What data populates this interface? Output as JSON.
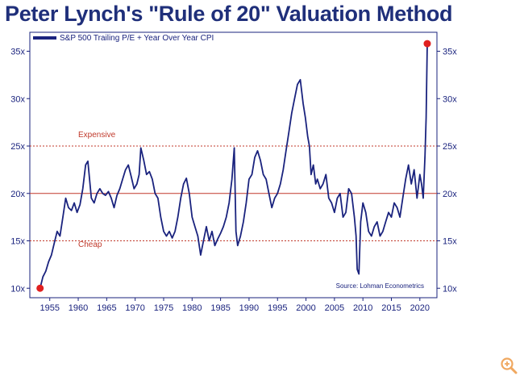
{
  "title": "Peter Lynch's \"Rule of 20\" Valuation Method",
  "icons": {
    "zoom": "zoom-in-icon"
  },
  "colors": {
    "title": "#1f2f7a",
    "series": "#1a237e",
    "reference": "#c0392b",
    "marker": "#e02020"
  },
  "chart_data": {
    "type": "line",
    "title": "Peter Lynch's \"Rule of 20\" Valuation Method",
    "xlabel": "",
    "ylabel": "",
    "xlim": [
      1951.5,
      2023
    ],
    "ylim": [
      9,
      37
    ],
    "x_ticks": [
      1955,
      1960,
      1965,
      1970,
      1975,
      1980,
      1985,
      1990,
      1995,
      2000,
      2005,
      2010,
      2015,
      2020
    ],
    "y_ticks": [
      {
        "value": 10,
        "label": "10x"
      },
      {
        "value": 15,
        "label": "15x"
      },
      {
        "value": 20,
        "label": "20x"
      },
      {
        "value": 25,
        "label": "25x"
      },
      {
        "value": 30,
        "label": "30x"
      },
      {
        "value": 35,
        "label": "35x"
      }
    ],
    "legend": {
      "position": "top-left",
      "entries": [
        "S&P 500 Trailing P/E + Year Over Year CPI"
      ]
    },
    "source": "Source: Lohman Econometrics",
    "reference_lines": [
      {
        "value": 25,
        "style": "dotted",
        "label": "Expensive"
      },
      {
        "value": 20,
        "style": "solid",
        "label": ""
      },
      {
        "value": 15,
        "style": "dotted",
        "label": "Cheap"
      }
    ],
    "markers": [
      {
        "x": 1953.3,
        "y": 10
      },
      {
        "x": 2021.3,
        "y": 35.8
      }
    ],
    "series": [
      {
        "name": "S&P 500 Trailing P/E + Year Over Year CPI",
        "x": [
          1953.3,
          1953.8,
          1954.3,
          1954.8,
          1955.3,
          1955.8,
          1956.3,
          1956.8,
          1957.3,
          1957.8,
          1958.3,
          1958.8,
          1959.3,
          1959.8,
          1960.3,
          1960.8,
          1961.3,
          1961.7,
          1962.3,
          1962.8,
          1963.3,
          1963.8,
          1964.3,
          1964.8,
          1965.3,
          1965.8,
          1966.3,
          1966.8,
          1967.3,
          1967.8,
          1968.3,
          1968.8,
          1969.3,
          1969.8,
          1970.3,
          1970.7,
          1971.0,
          1971.5,
          1972.0,
          1972.5,
          1973.0,
          1973.5,
          1974.0,
          1974.5,
          1975.0,
          1975.5,
          1976.0,
          1976.5,
          1977.0,
          1977.5,
          1978.0,
          1978.5,
          1979.0,
          1979.5,
          1980.0,
          1980.5,
          1981.0,
          1981.5,
          1982.0,
          1982.5,
          1983.0,
          1983.5,
          1984.0,
          1984.5,
          1985.0,
          1985.5,
          1986.0,
          1986.5,
          1987.0,
          1987.4,
          1987.7,
          1988.0,
          1988.5,
          1989.0,
          1989.5,
          1990.0,
          1990.5,
          1991.0,
          1991.5,
          1992.0,
          1992.5,
          1993.0,
          1993.5,
          1994.0,
          1994.5,
          1995.0,
          1995.5,
          1996.0,
          1996.5,
          1997.0,
          1997.5,
          1998.0,
          1998.5,
          1999.0,
          1999.5,
          1999.9,
          2000.3,
          2000.6,
          2000.9,
          2001.3,
          2001.7,
          2002.0,
          2002.5,
          2003.0,
          2003.5,
          2004.0,
          2004.5,
          2005.0,
          2005.5,
          2006.0,
          2006.5,
          2007.0,
          2007.5,
          2008.0,
          2008.5,
          2008.8,
          2009.0,
          2009.3,
          2009.6,
          2010.0,
          2010.5,
          2011.0,
          2011.5,
          2012.0,
          2012.5,
          2013.0,
          2013.5,
          2014.0,
          2014.5,
          2015.0,
          2015.5,
          2016.0,
          2016.5,
          2017.0,
          2017.5,
          2018.0,
          2018.5,
          2019.0,
          2019.5,
          2020.0,
          2020.3,
          2020.6,
          2020.9,
          2021.1,
          2021.3
        ],
        "values": [
          10.0,
          11.2,
          11.8,
          12.8,
          13.5,
          14.8,
          16.0,
          15.5,
          17.5,
          19.5,
          18.5,
          18.2,
          19.0,
          18.0,
          18.8,
          20.5,
          23.0,
          23.4,
          19.5,
          19.0,
          20.0,
          20.5,
          20.0,
          19.8,
          20.2,
          19.5,
          18.5,
          19.8,
          20.5,
          21.5,
          22.5,
          23.0,
          21.8,
          20.5,
          21.0,
          22.0,
          24.8,
          23.5,
          22.0,
          22.3,
          21.5,
          20.0,
          19.5,
          17.5,
          16.0,
          15.5,
          16.0,
          15.3,
          16.0,
          17.5,
          19.5,
          21.0,
          21.6,
          20.0,
          17.5,
          16.5,
          15.5,
          13.5,
          15.0,
          16.5,
          15.0,
          16.0,
          14.5,
          15.2,
          15.8,
          16.5,
          17.5,
          19.0,
          21.5,
          24.8,
          16.0,
          14.5,
          15.5,
          17.0,
          19.0,
          21.5,
          22.0,
          23.8,
          24.5,
          23.5,
          22.0,
          21.5,
          20.0,
          18.5,
          19.5,
          20.0,
          21.0,
          22.5,
          24.5,
          26.5,
          28.5,
          30.0,
          31.5,
          32.0,
          29.5,
          28.0,
          26.0,
          25.0,
          22.0,
          23.0,
          21.0,
          21.5,
          20.5,
          21.0,
          22.0,
          19.5,
          19.0,
          18.0,
          19.5,
          20.0,
          17.5,
          18.0,
          20.5,
          20.0,
          17.5,
          15.5,
          12.0,
          11.5,
          17.0,
          19.0,
          18.0,
          16.0,
          15.5,
          16.5,
          17.0,
          15.5,
          16.0,
          17.0,
          18.0,
          17.5,
          19.0,
          18.5,
          17.5,
          19.5,
          21.5,
          23.0,
          21.0,
          22.5,
          19.5,
          22.0,
          21.0,
          19.5,
          24.0,
          28.0,
          35.8
        ]
      }
    ]
  }
}
